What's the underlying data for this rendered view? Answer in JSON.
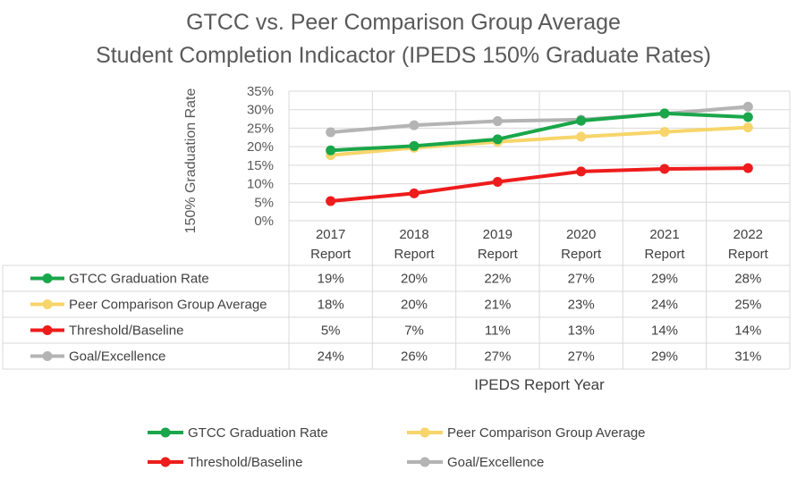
{
  "chart_data": {
    "type": "line",
    "title": "GTCC vs. Peer Comparison Group Average",
    "subtitle": "Student Completion Indicactor (IPEDS 150% Graduate Rates)",
    "ylabel": "150% Graduation Rate",
    "xlabel": "IPEDS Report Year",
    "ylim": [
      0,
      35
    ],
    "yticks": [
      0,
      5,
      10,
      15,
      20,
      25,
      30,
      35
    ],
    "ytick_labels": [
      "0%",
      "5%",
      "10%",
      "15%",
      "20%",
      "25%",
      "30%",
      "35%"
    ],
    "grid": true,
    "categories": [
      {
        "year": "2017",
        "sub": "Report"
      },
      {
        "year": "2018",
        "sub": "Report"
      },
      {
        "year": "2019",
        "sub": "Report"
      },
      {
        "year": "2020",
        "sub": "Report"
      },
      {
        "year": "2021",
        "sub": "Report"
      },
      {
        "year": "2022",
        "sub": "Report"
      }
    ],
    "series": [
      {
        "name": "GTCC Graduation Rate",
        "color": "#1aa64a",
        "values": [
          19,
          20.2,
          22,
          27,
          29,
          28
        ],
        "labels": [
          "19%",
          "20%",
          "22%",
          "27%",
          "29%",
          "28%"
        ]
      },
      {
        "name": "Peer Comparison Group Average",
        "color": "#f7d56a",
        "values": [
          17.7,
          19.7,
          21.3,
          22.7,
          24,
          25.2
        ],
        "labels": [
          "18%",
          "20%",
          "21%",
          "23%",
          "24%",
          "25%"
        ]
      },
      {
        "name": "Threshold/Baseline",
        "color": "#ee1c1c",
        "values": [
          5.3,
          7.4,
          10.5,
          13.3,
          14,
          14.2
        ],
        "labels": [
          "5%",
          "7%",
          "11%",
          "13%",
          "14%",
          "14%"
        ]
      },
      {
        "name": "Goal/Excellence",
        "color": "#b4b4b4",
        "values": [
          23.9,
          25.8,
          26.9,
          27.3,
          28.9,
          30.8
        ],
        "labels": [
          "24%",
          "26%",
          "27%",
          "27%",
          "29%",
          "31%"
        ]
      }
    ],
    "legend_position": "bottom"
  }
}
